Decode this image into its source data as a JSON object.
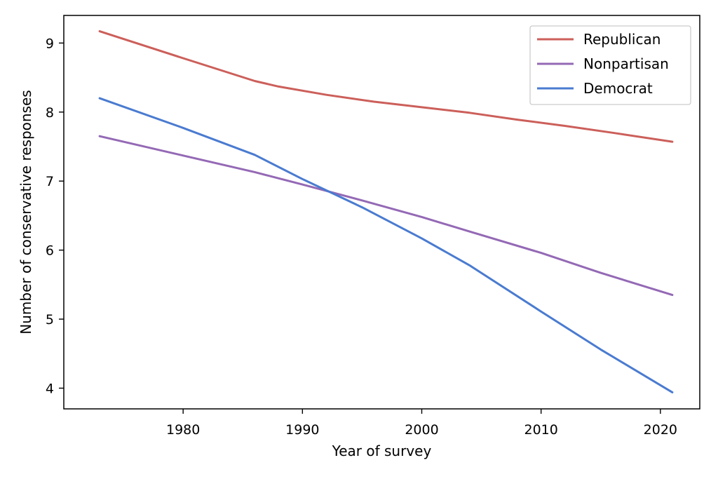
{
  "chart_data": {
    "type": "line",
    "title": "",
    "xlabel": "Year of survey",
    "ylabel": "Number of conservative responses",
    "xlim": [
      1970.0,
      2023.3
    ],
    "ylim": [
      3.7,
      9.4
    ],
    "xticks": [
      1980,
      1990,
      2000,
      2010,
      2020
    ],
    "yticks": [
      4,
      5,
      6,
      7,
      8,
      9
    ],
    "grid": false,
    "legend_position": "top-right",
    "series": [
      {
        "name": "Republican",
        "color": "#cc5f5a",
        "x": [
          1973,
          1980,
          1986,
          1988,
          1992,
          1996,
          2000,
          2004,
          2008,
          2012,
          2016,
          2021
        ],
        "y": [
          9.17,
          8.78,
          8.45,
          8.37,
          8.25,
          8.15,
          8.07,
          7.99,
          7.89,
          7.8,
          7.7,
          7.57
        ]
      },
      {
        "name": "Nonpartisan",
        "color": "#9469b5",
        "x": [
          1973,
          1980,
          1986,
          1990,
          1995,
          2000,
          2004,
          2010,
          2015,
          2021
        ],
        "y": [
          7.65,
          7.37,
          7.13,
          6.95,
          6.72,
          6.48,
          6.27,
          5.96,
          5.67,
          5.35
        ]
      },
      {
        "name": "Democrat",
        "color": "#4a7bd0",
        "x": [
          1973,
          1980,
          1986,
          1990,
          1995,
          2000,
          2004,
          2010,
          2015,
          2021
        ],
        "y": [
          8.2,
          7.77,
          7.38,
          7.03,
          6.62,
          6.17,
          5.78,
          5.11,
          4.56,
          3.94
        ]
      }
    ]
  }
}
